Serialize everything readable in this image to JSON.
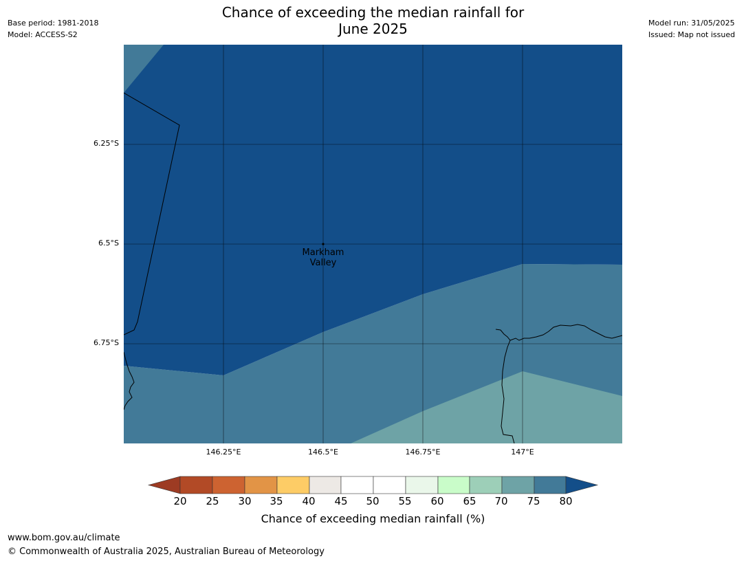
{
  "header": {
    "base_period": "Base period: 1981-2018",
    "model": "Model: ACCESS-S2",
    "model_run": "Model run: 31/05/2025",
    "issued": "Issued: Map not issued",
    "title_line1": "Chance of exceeding the median rainfall for",
    "title_line2": "June 2025"
  },
  "map": {
    "extent": {
      "lon_min": 146.0,
      "lon_max": 147.25,
      "lat_min": -7.0,
      "lat_max": -6.0
    },
    "gridlines_lon": [
      146.25,
      146.5,
      146.75,
      147.0
    ],
    "gridlines_lat": [
      -6.25,
      -6.5,
      -6.75
    ],
    "lat_labels": [
      "6.25°S",
      "6.5°S",
      "6.75°S"
    ],
    "lon_labels": [
      "146.25°E",
      "146.5°E",
      "146.75°E",
      "147°E"
    ],
    "place": {
      "name_line1": "Markham",
      "name_line2": "Valley",
      "lon": 146.5,
      "lat": -6.5
    },
    "regions": [
      {
        "category": "75-80",
        "color": "#427a98",
        "desc": "south band"
      },
      {
        "category": "70-75",
        "color": "#6ea3a6",
        "desc": "south-east corner"
      },
      {
        "category": ">80",
        "color": "#134e89",
        "desc": "north"
      },
      {
        "category": "75-80",
        "color": "#427a98",
        "desc": "north-west corner"
      }
    ]
  },
  "colorbar": {
    "title": "Chance of exceeding median rainfall (%)",
    "ticks": [
      "20",
      "25",
      "30",
      "35",
      "40",
      "45",
      "50",
      "55",
      "60",
      "65",
      "70",
      "75",
      "80"
    ],
    "under_color": "#9d3b23",
    "over_color": "#134e89",
    "colors": [
      "#b24a26",
      "#cd6331",
      "#e29446",
      "#fdcc66",
      "#ede9e5",
      "#ffffff",
      "#ffffff",
      "#eaf7ea",
      "#c9fcc9",
      "#9dcfb8",
      "#6ea3a6",
      "#427a98"
    ]
  },
  "footer": {
    "url": "www.bom.gov.au/climate",
    "copyright": "© Commonwealth of Australia 2025, Australian Bureau of Meteorology"
  }
}
